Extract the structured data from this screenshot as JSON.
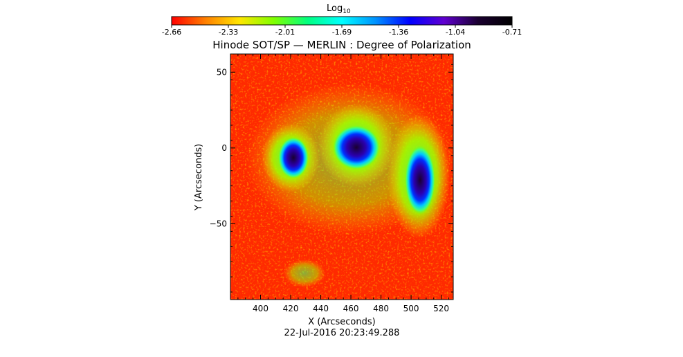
{
  "colorbar": {
    "label_main": "Log",
    "label_sub": "10",
    "ticks": [
      "-2.66",
      "-2.33",
      "-2.01",
      "-1.69",
      "-1.36",
      "-1.04",
      "-0.71"
    ],
    "colors": [
      "#ff0000",
      "#ff8000",
      "#ffe600",
      "#80ff00",
      "#00ff80",
      "#00ffff",
      "#0090ff",
      "#0000ff",
      "#6000d0",
      "#1a0030",
      "#000000"
    ]
  },
  "chart_data": {
    "type": "heatmap",
    "title": "Hinode SOT/SP — MERLIN : Degree of Polarization",
    "xlabel": "X (Arcseconds)",
    "ylabel": "Y (Arcseconds)",
    "xlim": [
      380,
      528
    ],
    "ylim": [
      -100,
      62
    ],
    "x_ticks": [
      400,
      420,
      440,
      460,
      480,
      500,
      520
    ],
    "y_ticks": [
      50,
      0,
      -50
    ],
    "x_tick_labels": [
      "400",
      "420",
      "440",
      "460",
      "480",
      "500",
      "520"
    ],
    "y_tick_labels": [
      "50",
      "0",
      "−50"
    ],
    "value_range": [
      -2.66,
      -0.71
    ],
    "scale": "log10",
    "colormap": "rainbow (red low → black high)",
    "features": [
      {
        "type": "umbra",
        "center": [
          422,
          -5
        ],
        "radius": [
          6,
          12
        ]
      },
      {
        "type": "umbra",
        "center": [
          465,
          0
        ],
        "radius": [
          12,
          12
        ]
      },
      {
        "type": "umbra",
        "center": [
          505,
          -20
        ],
        "radius": [
          7,
          20
        ]
      }
    ]
  },
  "timestamp": "22-Jul-2016 20:23:49.288"
}
